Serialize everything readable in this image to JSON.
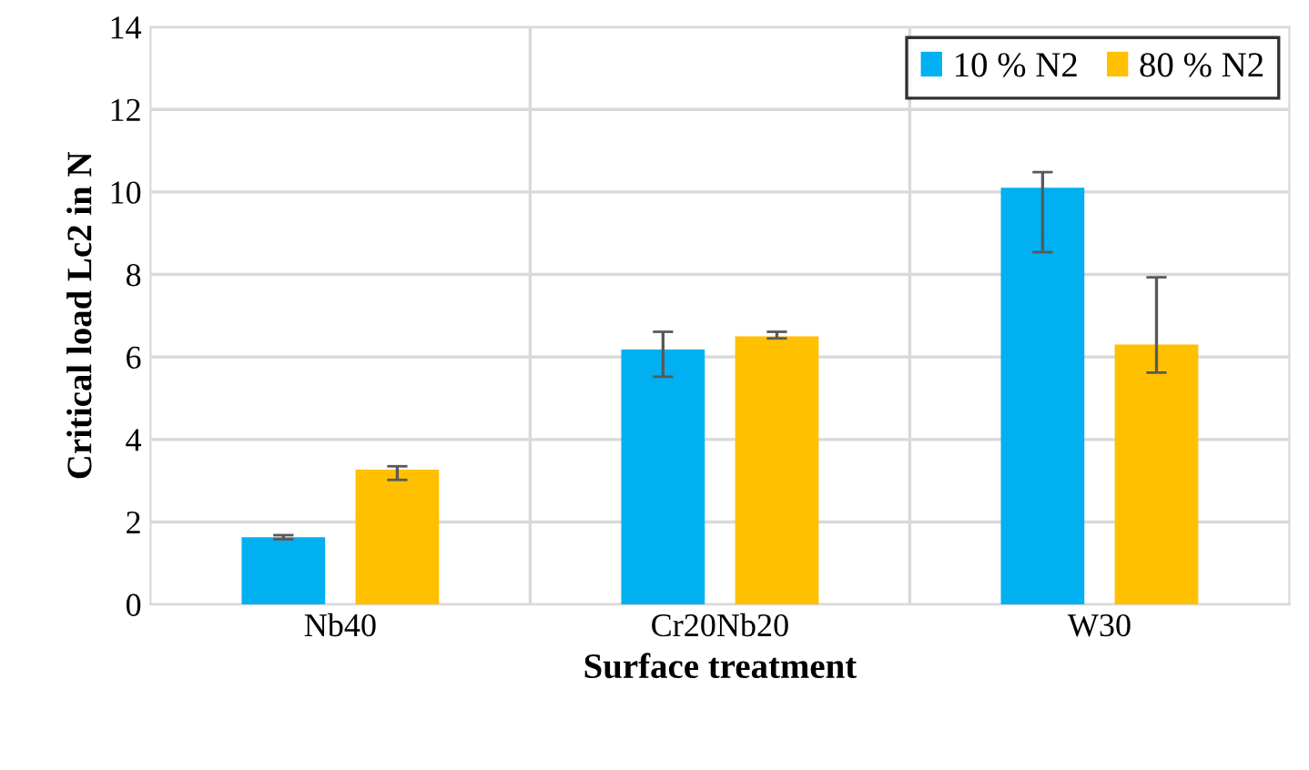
{
  "chart_data": {
    "type": "bar",
    "xlabel": "Surface treatment",
    "ylabel": "Critical load Lc2 in N",
    "categories": [
      "Nb40",
      "Cr20Nb20",
      "W30"
    ],
    "series": [
      {
        "name": "10 % N2",
        "color": "#00b0f0",
        "values": [
          1.63,
          6.18,
          10.1
        ],
        "errors": [
          [
            1.58,
            1.68
          ],
          [
            5.52,
            6.61
          ],
          [
            8.54,
            10.48
          ]
        ]
      },
      {
        "name": "80 % N2",
        "color": "#ffc000",
        "values": [
          3.27,
          6.5,
          6.3
        ],
        "errors": [
          [
            3.02,
            3.35
          ],
          [
            6.45,
            6.61
          ],
          [
            5.62,
            7.93
          ]
        ]
      }
    ],
    "ylim": [
      0,
      14
    ],
    "yticks": [
      0,
      2,
      4,
      6,
      8,
      10,
      12,
      14
    ],
    "grid": true,
    "legend": "top right"
  }
}
